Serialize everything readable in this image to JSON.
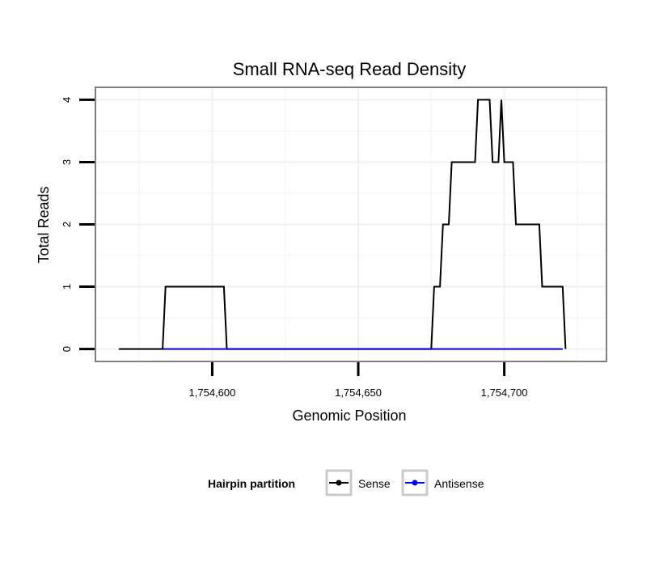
{
  "chart_data": {
    "type": "line",
    "title": "Small RNA-seq Read Density",
    "xlabel": "Genomic Position",
    "ylabel": "Total Reads",
    "xlim": [
      1754560,
      1754735
    ],
    "ylim": [
      -0.2,
      4.2
    ],
    "x_ticks": [
      1754600,
      1754650,
      1754700
    ],
    "x_tick_labels": [
      "1,754,600",
      "1,754,650",
      "1,754,700"
    ],
    "y_ticks": [
      0,
      1,
      2,
      3,
      4
    ],
    "y_tick_labels": [
      "0",
      "1",
      "2",
      "3",
      "4"
    ],
    "grid": true,
    "legend": {
      "title": "Hairpin partition",
      "position": "bottom",
      "entries": [
        "Sense",
        "Antisense"
      ]
    },
    "series": [
      {
        "name": "Sense",
        "color": "#000000",
        "x": [
          1754568,
          1754583,
          1754584,
          1754604,
          1754605,
          1754675,
          1754676,
          1754678,
          1754679,
          1754681,
          1754682,
          1754690,
          1754691,
          1754695,
          1754696,
          1754698,
          1754699,
          1754700,
          1754701,
          1754703,
          1754704,
          1754712,
          1754713,
          1754720,
          1754721
        ],
        "y": [
          0,
          0,
          1,
          1,
          0,
          0,
          1,
          1,
          2,
          2,
          3,
          3,
          4,
          4,
          3,
          3,
          4,
          3,
          3,
          3,
          2,
          2,
          1,
          1,
          0
        ]
      },
      {
        "name": "Antisense",
        "color": "#0000ff",
        "x": [
          1754583,
          1754605,
          1754675,
          1754720
        ],
        "y": [
          0,
          0,
          0,
          0
        ]
      }
    ]
  }
}
